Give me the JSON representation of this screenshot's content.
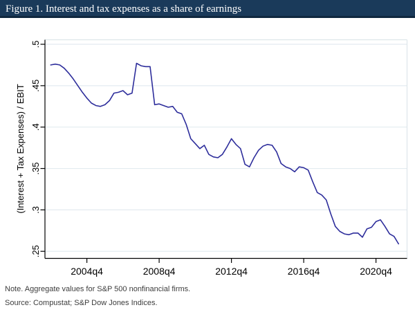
{
  "header": {
    "title": "Figure 1. Interest and tax expenses as a share of earnings"
  },
  "notes": {
    "note": "Note. Aggregate values for S&P 500 nonfinancial firms.",
    "source": "Source: Compustat; S&P Dow Jones Indices."
  },
  "colors": {
    "header_bg": "#1a3a5a",
    "header_border": "#10283f",
    "header_text": "#ffffff",
    "line": "#2d2d9b",
    "gridline": "#e3ebf0",
    "plot_border": "#dde6ea",
    "axis": "#000000",
    "tick_label": "#000000",
    "note_text": "#3c3c3c",
    "background": "#ffffff"
  },
  "chart_data": {
    "type": "line",
    "title": "",
    "xlabel": "",
    "ylabel": "(Interest + Tax Expenses) / EBIT",
    "ylim": [
      0.25,
      0.5
    ],
    "x_range": [
      "2002q4",
      "2022q1"
    ],
    "grid": "horizontal-only",
    "legend": "none",
    "y_ticks": [
      {
        "label": ".5",
        "value": 0.5
      },
      {
        "label": ".45",
        "value": 0.45
      },
      {
        "label": ".4",
        "value": 0.4
      },
      {
        "label": ".35",
        "value": 0.35
      },
      {
        "label": ".3",
        "value": 0.3
      },
      {
        "label": ".25",
        "value": 0.25
      }
    ],
    "x_ticks": [
      {
        "label": "2004q4"
      },
      {
        "label": "2008q4"
      },
      {
        "label": "2012q4"
      },
      {
        "label": "2016q4"
      },
      {
        "label": "2020q4"
      }
    ],
    "x": [
      "2002q4",
      "2003q1",
      "2003q2",
      "2003q3",
      "2003q4",
      "2004q1",
      "2004q2",
      "2004q3",
      "2004q4",
      "2005q1",
      "2005q2",
      "2005q3",
      "2005q4",
      "2006q1",
      "2006q2",
      "2006q3",
      "2006q4",
      "2007q1",
      "2007q2",
      "2007q3",
      "2007q4",
      "2008q1",
      "2008q2",
      "2008q3",
      "2008q4",
      "2009q1",
      "2009q2",
      "2009q3",
      "2009q4",
      "2010q1",
      "2010q2",
      "2010q3",
      "2010q4",
      "2011q1",
      "2011q2",
      "2011q3",
      "2011q4",
      "2012q1",
      "2012q2",
      "2012q3",
      "2012q4",
      "2013q1",
      "2013q2",
      "2013q3",
      "2013q4",
      "2014q1",
      "2014q2",
      "2014q3",
      "2014q4",
      "2015q1",
      "2015q2",
      "2015q3",
      "2015q4",
      "2016q1",
      "2016q2",
      "2016q3",
      "2016q4",
      "2017q1",
      "2017q2",
      "2017q3",
      "2017q4",
      "2018q1",
      "2018q2",
      "2018q3",
      "2018q4",
      "2019q1",
      "2019q2",
      "2019q3",
      "2019q4",
      "2020q1",
      "2020q2",
      "2020q3",
      "2020q4",
      "2021q1",
      "2021q2",
      "2021q3",
      "2021q4",
      "2022q1"
    ],
    "values": [
      0.475,
      0.476,
      0.475,
      0.471,
      0.465,
      0.458,
      0.45,
      0.442,
      0.435,
      0.429,
      0.426,
      0.425,
      0.427,
      0.432,
      0.441,
      0.442,
      0.444,
      0.439,
      0.441,
      0.477,
      0.474,
      0.473,
      0.473,
      0.427,
      0.428,
      0.426,
      0.424,
      0.425,
      0.418,
      0.416,
      0.403,
      0.386,
      0.38,
      0.374,
      0.378,
      0.367,
      0.364,
      0.363,
      0.367,
      0.376,
      0.386,
      0.379,
      0.374,
      0.355,
      0.352,
      0.363,
      0.372,
      0.377,
      0.379,
      0.378,
      0.37,
      0.356,
      0.352,
      0.35,
      0.346,
      0.352,
      0.351,
      0.348,
      0.334,
      0.321,
      0.318,
      0.312,
      0.295,
      0.28,
      0.274,
      0.271,
      0.27,
      0.272,
      0.272,
      0.267,
      0.277,
      0.279,
      0.286,
      0.288,
      0.28,
      0.271,
      0.268,
      0.259
    ]
  }
}
